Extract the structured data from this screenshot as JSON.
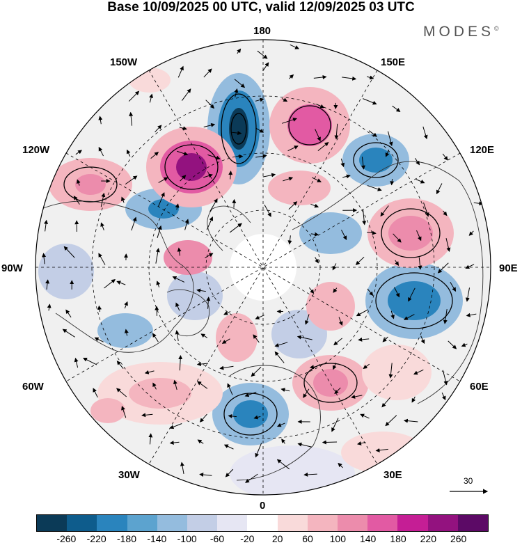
{
  "title": "Base 10/09/2025 00 UTC, valid 12/09/2025 03 UTC",
  "brand": {
    "name": "MODES",
    "mark": "©"
  },
  "longitude_labels": {
    "top": "180",
    "bottom": "0",
    "left": "90W",
    "right": "90E",
    "upper_left": "150W",
    "upper_right": "150E",
    "mid_upper_left": "120W",
    "mid_upper_right": "120E",
    "mid_lower_left": "60W",
    "mid_lower_right": "60E",
    "lower_left": "30W",
    "lower_right": "30E"
  },
  "reference_vector": {
    "value": "30"
  },
  "colorbar": {
    "colors": [
      "#0b3a57",
      "#0e5c8c",
      "#2a84bd",
      "#5ca3cf",
      "#94bcde",
      "#c3cee6",
      "#e6e6f3",
      "#ffffff",
      "#f9dada",
      "#f4b5bf",
      "#ec8cac",
      "#e25aa3",
      "#c51e95",
      "#93127f",
      "#5c0a66"
    ],
    "ticks": [
      "-260",
      "-220",
      "-180",
      "-140",
      "-100",
      "-60",
      "-20",
      "20",
      "60",
      "100",
      "140",
      "180",
      "220",
      "260"
    ]
  }
}
